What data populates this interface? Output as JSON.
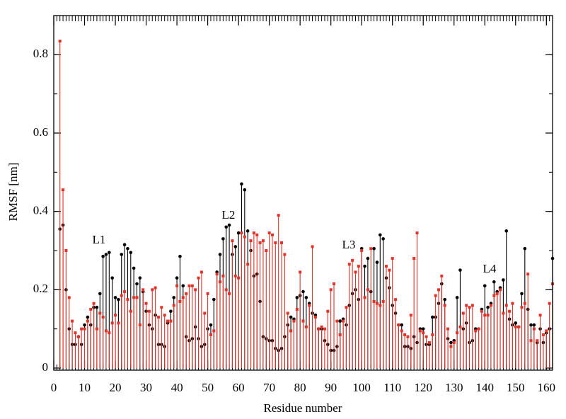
{
  "chart_data": {
    "type": "stem",
    "xlabel": "Residue number",
    "ylabel": "RMSF [nm]",
    "annotations": [
      "L1",
      "L2",
      "L3",
      "L4"
    ],
    "x": [
      2,
      3,
      4,
      5,
      6,
      7,
      8,
      9,
      10,
      11,
      12,
      13,
      14,
      15,
      16,
      17,
      18,
      19,
      20,
      21,
      22,
      23,
      24,
      25,
      26,
      27,
      28,
      29,
      30,
      31,
      32,
      33,
      34,
      35,
      36,
      37,
      38,
      39,
      40,
      41,
      42,
      43,
      44,
      45,
      46,
      47,
      48,
      49,
      50,
      51,
      52,
      53,
      54,
      55,
      56,
      57,
      58,
      59,
      60,
      61,
      62,
      63,
      64,
      65,
      66,
      67,
      68,
      69,
      70,
      71,
      72,
      73,
      74,
      75,
      76,
      77,
      78,
      79,
      80,
      81,
      82,
      83,
      84,
      85,
      86,
      87,
      88,
      89,
      90,
      91,
      92,
      93,
      94,
      95,
      96,
      97,
      98,
      99,
      100,
      101,
      102,
      103,
      104,
      105,
      106,
      107,
      108,
      109,
      110,
      111,
      112,
      113,
      114,
      115,
      116,
      117,
      118,
      119,
      120,
      121,
      122,
      123,
      124,
      125,
      126,
      127,
      128,
      129,
      130,
      131,
      132,
      133,
      134,
      135,
      136,
      137,
      138,
      139,
      140,
      141,
      142,
      143,
      144,
      145,
      146,
      147,
      148,
      149,
      150,
      151,
      152,
      153,
      154,
      155,
      156,
      157,
      158,
      159,
      160,
      161,
      162
    ],
    "series": [
      {
        "color": "#000000",
        "marker": "circle",
        "values": [
          0.355,
          0.365,
          0.2,
          0.1,
          0.06,
          0.06,
          0.08,
          0.06,
          0.11,
          0.13,
          0.11,
          0.155,
          0.155,
          0.19,
          0.285,
          0.29,
          0.295,
          0.23,
          0.18,
          0.175,
          0.29,
          0.315,
          0.305,
          0.295,
          0.255,
          0.215,
          0.23,
          0.195,
          0.145,
          0.11,
          0.1,
          0.135,
          0.06,
          0.06,
          0.055,
          0.115,
          0.145,
          0.18,
          0.23,
          0.285,
          0.21,
          0.08,
          0.07,
          0.075,
          0.105,
          0.075,
          0.055,
          0.06,
          0.1,
          0.11,
          0.175,
          0.245,
          0.29,
          0.33,
          0.36,
          0.365,
          0.29,
          0.31,
          0.345,
          0.47,
          0.455,
          0.35,
          0.3,
          0.235,
          0.24,
          0.17,
          0.08,
          0.075,
          0.07,
          0.07,
          0.05,
          0.045,
          0.05,
          0.08,
          0.11,
          0.13,
          0.125,
          0.18,
          0.185,
          0.195,
          0.18,
          0.165,
          0.14,
          0.135,
          0.1,
          0.1,
          0.07,
          0.06,
          0.045,
          0.045,
          0.055,
          0.12,
          0.125,
          0.11,
          0.16,
          0.19,
          0.2,
          0.175,
          0.305,
          0.26,
          0.28,
          0.195,
          0.305,
          0.27,
          0.34,
          0.33,
          0.23,
          0.205,
          0.16,
          0.14,
          0.11,
          0.11,
          0.055,
          0.055,
          0.05,
          0.08,
          0.065,
          0.1,
          0.1,
          0.06,
          0.06,
          0.13,
          0.13,
          0.165,
          0.215,
          0.175,
          0.075,
          0.065,
          0.07,
          0.18,
          0.25,
          0.1,
          0.115,
          0.065,
          0.07,
          0.1,
          0.1,
          0.15,
          0.21,
          0.155,
          0.165,
          0.22,
          0.195,
          0.205,
          0.225,
          0.35,
          0.125,
          0.11,
          0.115,
          0.105,
          0.19,
          0.305,
          0.15,
          0.11,
          0.11,
          0.065,
          0.1,
          0.065,
          0.09,
          0.1,
          0.28
        ]
      },
      {
        "color": "#e2332b",
        "marker": "square",
        "values": [
          0.835,
          0.455,
          0.3,
          0.18,
          0.12,
          0.09,
          0.08,
          0.1,
          0.1,
          0.12,
          0.15,
          0.165,
          0.1,
          0.14,
          0.13,
          0.095,
          0.09,
          0.115,
          0.135,
          0.115,
          0.185,
          0.195,
          0.175,
          0.145,
          0.18,
          0.18,
          0.11,
          0.2,
          0.165,
          0.145,
          0.2,
          0.205,
          0.13,
          0.155,
          0.135,
          0.12,
          0.12,
          0.16,
          0.21,
          0.17,
          0.18,
          0.19,
          0.21,
          0.21,
          0.2,
          0.23,
          0.245,
          0.14,
          0.19,
          0.085,
          0.095,
          0.24,
          0.22,
          0.235,
          0.2,
          0.19,
          0.325,
          0.235,
          0.23,
          0.345,
          0.335,
          0.265,
          0.325,
          0.345,
          0.34,
          0.32,
          0.325,
          0.3,
          0.345,
          0.34,
          0.32,
          0.39,
          0.32,
          0.29,
          0.14,
          0.095,
          0.12,
          0.15,
          0.245,
          0.12,
          0.105,
          0.16,
          0.31,
          0.13,
          0.1,
          0.105,
          0.1,
          0.145,
          0.2,
          0.215,
          0.12,
          0.085,
          0.12,
          0.155,
          0.265,
          0.275,
          0.245,
          0.26,
          0.3,
          0.18,
          0.2,
          0.305,
          0.17,
          0.165,
          0.16,
          0.17,
          0.26,
          0.25,
          0.28,
          0.175,
          0.11,
          0.095,
          0.085,
          0.08,
          0.135,
          0.28,
          0.345,
          0.095,
          0.09,
          0.08,
          0.065,
          0.085,
          0.185,
          0.2,
          0.235,
          0.16,
          0.1,
          0.055,
          0.065,
          0.09,
          0.105,
          0.14,
          0.16,
          0.155,
          0.16,
          0.095,
          0.1,
          0.145,
          0.135,
          0.135,
          0.16,
          0.185,
          0.19,
          0.2,
          0.14,
          0.16,
          0.145,
          0.165,
          0.105,
          0.105,
          0.155,
          0.165,
          0.24,
          0.07,
          0.1,
          0.07,
          0.135,
          0.085,
          0.095,
          0.165,
          0.215
        ]
      }
    ],
    "xlim": [
      0,
      162
    ],
    "ylim": [
      0,
      0.9
    ],
    "xticks": [
      0,
      10,
      20,
      30,
      40,
      50,
      60,
      70,
      80,
      90,
      100,
      110,
      120,
      130,
      140,
      150,
      160
    ],
    "yticks": [
      0,
      0.2,
      0.4,
      0.6,
      0.8
    ],
    "minor_xtick_step": 1,
    "minor_ytick_step": 0.1
  }
}
